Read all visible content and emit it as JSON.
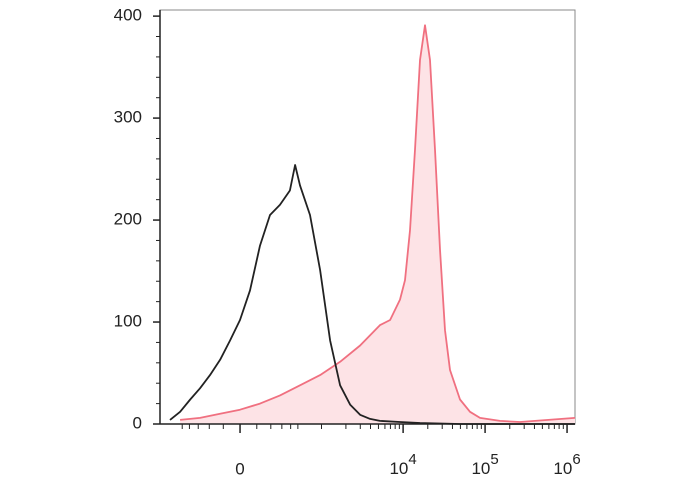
{
  "chart_data": {
    "type": "line",
    "xscale": "asinh",
    "xscale_cofactor": 205,
    "xlim": [
      -960,
      1250000
    ],
    "xticks": [
      0,
      {
        "value": 10000,
        "label": "10",
        "exponent": "4"
      },
      {
        "value": 100000,
        "label": "10",
        "exponent": "5"
      },
      {
        "value": 1000000,
        "label": "10",
        "exponent": "6"
      }
    ],
    "xminorticks": [
      -500,
      -400,
      -300,
      -200,
      -100,
      100,
      200,
      300,
      400,
      500,
      1000,
      2000,
      3000,
      4000,
      5000,
      6000,
      7000,
      8000,
      9000,
      20000,
      30000,
      40000,
      50000,
      60000,
      70000,
      80000,
      90000,
      200000,
      300000,
      400000,
      500000,
      600000,
      700000,
      800000,
      900000
    ],
    "ylim": [
      0,
      406
    ],
    "yticks": [
      0,
      100,
      200,
      300,
      400
    ],
    "yminorticks": [
      20,
      40,
      60,
      80,
      120,
      140,
      160,
      180,
      220,
      240,
      260,
      280,
      320,
      340,
      360,
      380
    ],
    "series": [
      {
        "color": "#f07080",
        "fill": "#fde3e6",
        "x": [
          -533,
          -282,
          -121,
          0,
          121,
          282,
          533,
          960,
          1695,
          2981,
          5230,
          6930,
          9170,
          10550,
          12140,
          13980,
          16090,
          18510,
          21300,
          24520,
          28190,
          32450,
          37350,
          49400,
          65400,
          86700,
          151900,
          266500,
          1250000
        ],
        "values": [
          4,
          6,
          10,
          14,
          20,
          28,
          38,
          48,
          61,
          77,
          97,
          102,
          122,
          141,
          190,
          269,
          357,
          391,
          357,
          269,
          171,
          92,
          53,
          24,
          12,
          6,
          3,
          2,
          6
        ]
      },
      {
        "color": "#222222",
        "x": [
          -718,
          -533,
          -390,
          -282,
          -194,
          -121,
          -58,
          0,
          58,
          121,
          194,
          282,
          390,
          459,
          533,
          718,
          960,
          1279,
          1695,
          2249,
          2981,
          3950,
          5230,
          9170,
          16090,
          49400,
          1250000
        ],
        "values": [
          4,
          12,
          24,
          35,
          48,
          63,
          82,
          102,
          131,
          175,
          205,
          215,
          229,
          254,
          234,
          205,
          151,
          82,
          38,
          19,
          9,
          5,
          3,
          2,
          1,
          0,
          0
        ]
      }
    ]
  }
}
